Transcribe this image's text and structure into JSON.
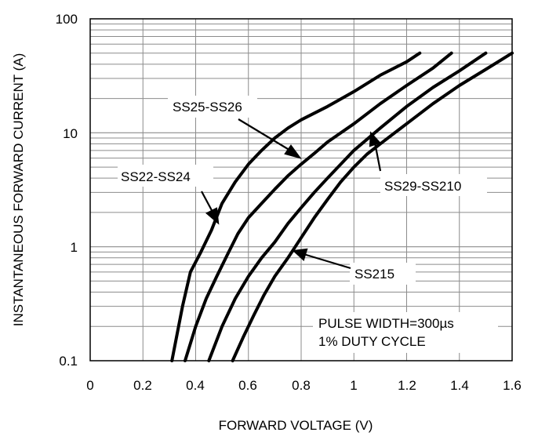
{
  "chart_data": {
    "type": "line",
    "xlabel": "FORWARD VOLTAGE (V)",
    "ylabel": "INSTANTANEOUS FORWARD CURRENT (A)",
    "xlim": [
      0,
      1.6
    ],
    "ylim": [
      0.1,
      100
    ],
    "yscale": "log",
    "grid": true,
    "x_ticks": [
      "0",
      "0.2",
      "0.4",
      "0.6",
      "0.8",
      "1",
      "1.2",
      "1.4",
      "1.6"
    ],
    "y_ticks": [
      "0.1",
      "1",
      "10",
      "100"
    ],
    "series": [
      {
        "name": "SS22-SS24",
        "x": [
          0.31,
          0.35,
          0.38,
          0.42,
          0.46,
          0.5,
          0.55,
          0.6,
          0.65,
          0.7,
          0.75,
          0.8,
          0.9,
          1.0,
          1.1,
          1.2,
          1.25
        ],
        "y": [
          0.1,
          0.3,
          0.6,
          0.9,
          1.4,
          2.4,
          3.7,
          5.3,
          7.0,
          9.0,
          11.0,
          13.0,
          17.0,
          23.0,
          32.0,
          42.0,
          50.0
        ]
      },
      {
        "name": "SS25-SS26",
        "x": [
          0.36,
          0.4,
          0.44,
          0.48,
          0.52,
          0.56,
          0.6,
          0.65,
          0.7,
          0.75,
          0.8,
          0.85,
          0.9,
          1.0,
          1.1,
          1.2,
          1.3,
          1.37
        ],
        "y": [
          0.1,
          0.2,
          0.35,
          0.55,
          0.85,
          1.3,
          1.8,
          2.4,
          3.2,
          4.2,
          5.3,
          6.6,
          8.3,
          12.0,
          18.0,
          26.0,
          37.0,
          50.0
        ]
      },
      {
        "name": "SS29-SS210",
        "x": [
          0.45,
          0.5,
          0.55,
          0.6,
          0.65,
          0.7,
          0.75,
          0.8,
          0.85,
          0.9,
          1.0,
          1.1,
          1.2,
          1.3,
          1.4,
          1.5
        ],
        "y": [
          0.1,
          0.2,
          0.35,
          0.55,
          0.8,
          1.1,
          1.6,
          2.2,
          3.0,
          4.0,
          7.0,
          11.0,
          17.0,
          25.0,
          35.0,
          50.0
        ]
      },
      {
        "name": "SS215",
        "x": [
          0.54,
          0.58,
          0.62,
          0.66,
          0.7,
          0.75,
          0.8,
          0.85,
          0.9,
          0.95,
          1.0,
          1.05,
          1.1,
          1.2,
          1.3,
          1.4,
          1.5,
          1.6
        ],
        "y": [
          0.1,
          0.16,
          0.25,
          0.38,
          0.55,
          0.8,
          1.2,
          1.8,
          2.6,
          3.7,
          5.0,
          6.5,
          8.0,
          12.0,
          18.0,
          26.0,
          36.0,
          50.0
        ]
      }
    ],
    "annotations": {
      "pulse": "PULSE WIDTH=300µs",
      "duty": "1% DUTY CYCLE"
    }
  },
  "colors": {
    "line": "#000000",
    "grid": "#8c8c8c",
    "background": "#ffffff"
  }
}
